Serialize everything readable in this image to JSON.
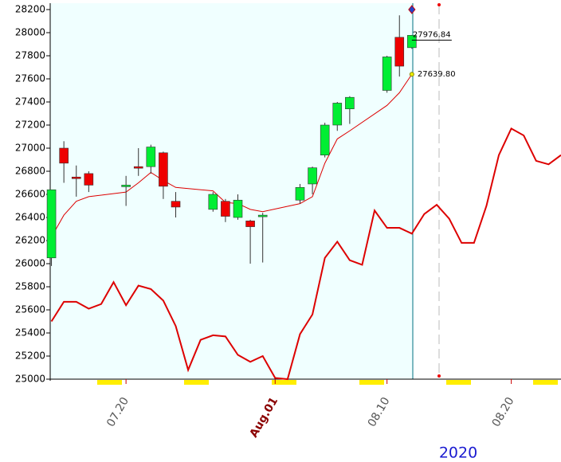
{
  "chart_data": {
    "type": "candlestick",
    "ylim": [
      25000,
      28200
    ],
    "yticks": [
      25000,
      25200,
      25400,
      25600,
      25800,
      26000,
      26200,
      26400,
      26600,
      26800,
      27000,
      27200,
      27400,
      27600,
      27800,
      28000,
      28200
    ],
    "xlim": [
      -0.1,
      41
    ],
    "xticks": [
      {
        "value": 6,
        "label": "07.20"
      },
      {
        "value": 18,
        "label": "Aug.01"
      },
      {
        "value": 27,
        "label": "08.10"
      },
      {
        "value": 37,
        "label": "08.20"
      }
    ],
    "x": [
      0,
      1,
      2,
      3,
      6,
      7,
      8,
      9,
      10,
      13,
      14,
      15,
      16,
      17,
      20,
      21,
      22,
      23,
      24,
      27,
      28,
      29
    ],
    "open": [
      26050,
      27000,
      26750,
      26780,
      26680,
      26840,
      26840,
      26960,
      26540,
      26470,
      26540,
      26400,
      26370,
      26420,
      26550,
      26690,
      26940,
      27200,
      27340,
      27500,
      27960,
      27870
    ],
    "high": [
      26640,
      27060,
      26850,
      26800,
      26760,
      27000,
      27030,
      26970,
      26620,
      26620,
      26560,
      26600,
      26380,
      26440,
      26690,
      26840,
      27220,
      27400,
      27450,
      27800,
      28150,
      27980
    ],
    "low": [
      25980,
      26700,
      26580,
      26620,
      26500,
      26760,
      26780,
      26560,
      26400,
      26450,
      26360,
      26380,
      26000,
      26010,
      26520,
      26600,
      26920,
      27150,
      27210,
      27480,
      27620,
      27860
    ],
    "close": [
      26640,
      26870,
      26740,
      26680,
      26680,
      26830,
      27010,
      26670,
      26490,
      26600,
      26410,
      26550,
      26320,
      26420,
      26660,
      26830,
      27200,
      27390,
      27440,
      27790,
      27710,
      27976.84
    ],
    "up_color": "#00ee33",
    "down_color": "#ee0000",
    "ma": {
      "color": "#dd0000",
      "values": [
        26230,
        26420,
        26540,
        26580,
        26620,
        26700,
        26790,
        26720,
        26660,
        26630,
        26530,
        26520,
        26470,
        26450,
        26520,
        26580,
        26870,
        27080,
        27150,
        27370,
        27480,
        27639.8
      ]
    },
    "line": {
      "color": "#dd0000",
      "x": [
        0,
        1,
        2,
        3,
        4,
        5,
        6,
        7,
        8,
        9,
        10,
        11,
        12,
        13,
        14,
        15,
        16,
        17,
        18,
        19,
        20,
        21,
        22,
        23,
        24,
        25,
        26,
        27,
        28,
        29,
        30,
        31,
        32,
        33,
        34,
        35,
        36,
        37,
        38,
        39,
        40,
        41
      ],
      "values": [
        25500,
        25670,
        25670,
        25610,
        25650,
        25840,
        25640,
        25810,
        25780,
        25680,
        25460,
        25080,
        25340,
        25380,
        25370,
        25210,
        25150,
        25200,
        25010,
        25000,
        25390,
        25560,
        26050,
        26190,
        26030,
        25990,
        26460,
        26310,
        26310,
        26260,
        26430,
        26510,
        26390,
        26180,
        26180,
        26500,
        26940,
        27170,
        27110,
        26890,
        26860,
        26940
      ]
    },
    "annotations": [
      "27976.84",
      "27639.80"
    ],
    "year": "2020"
  }
}
